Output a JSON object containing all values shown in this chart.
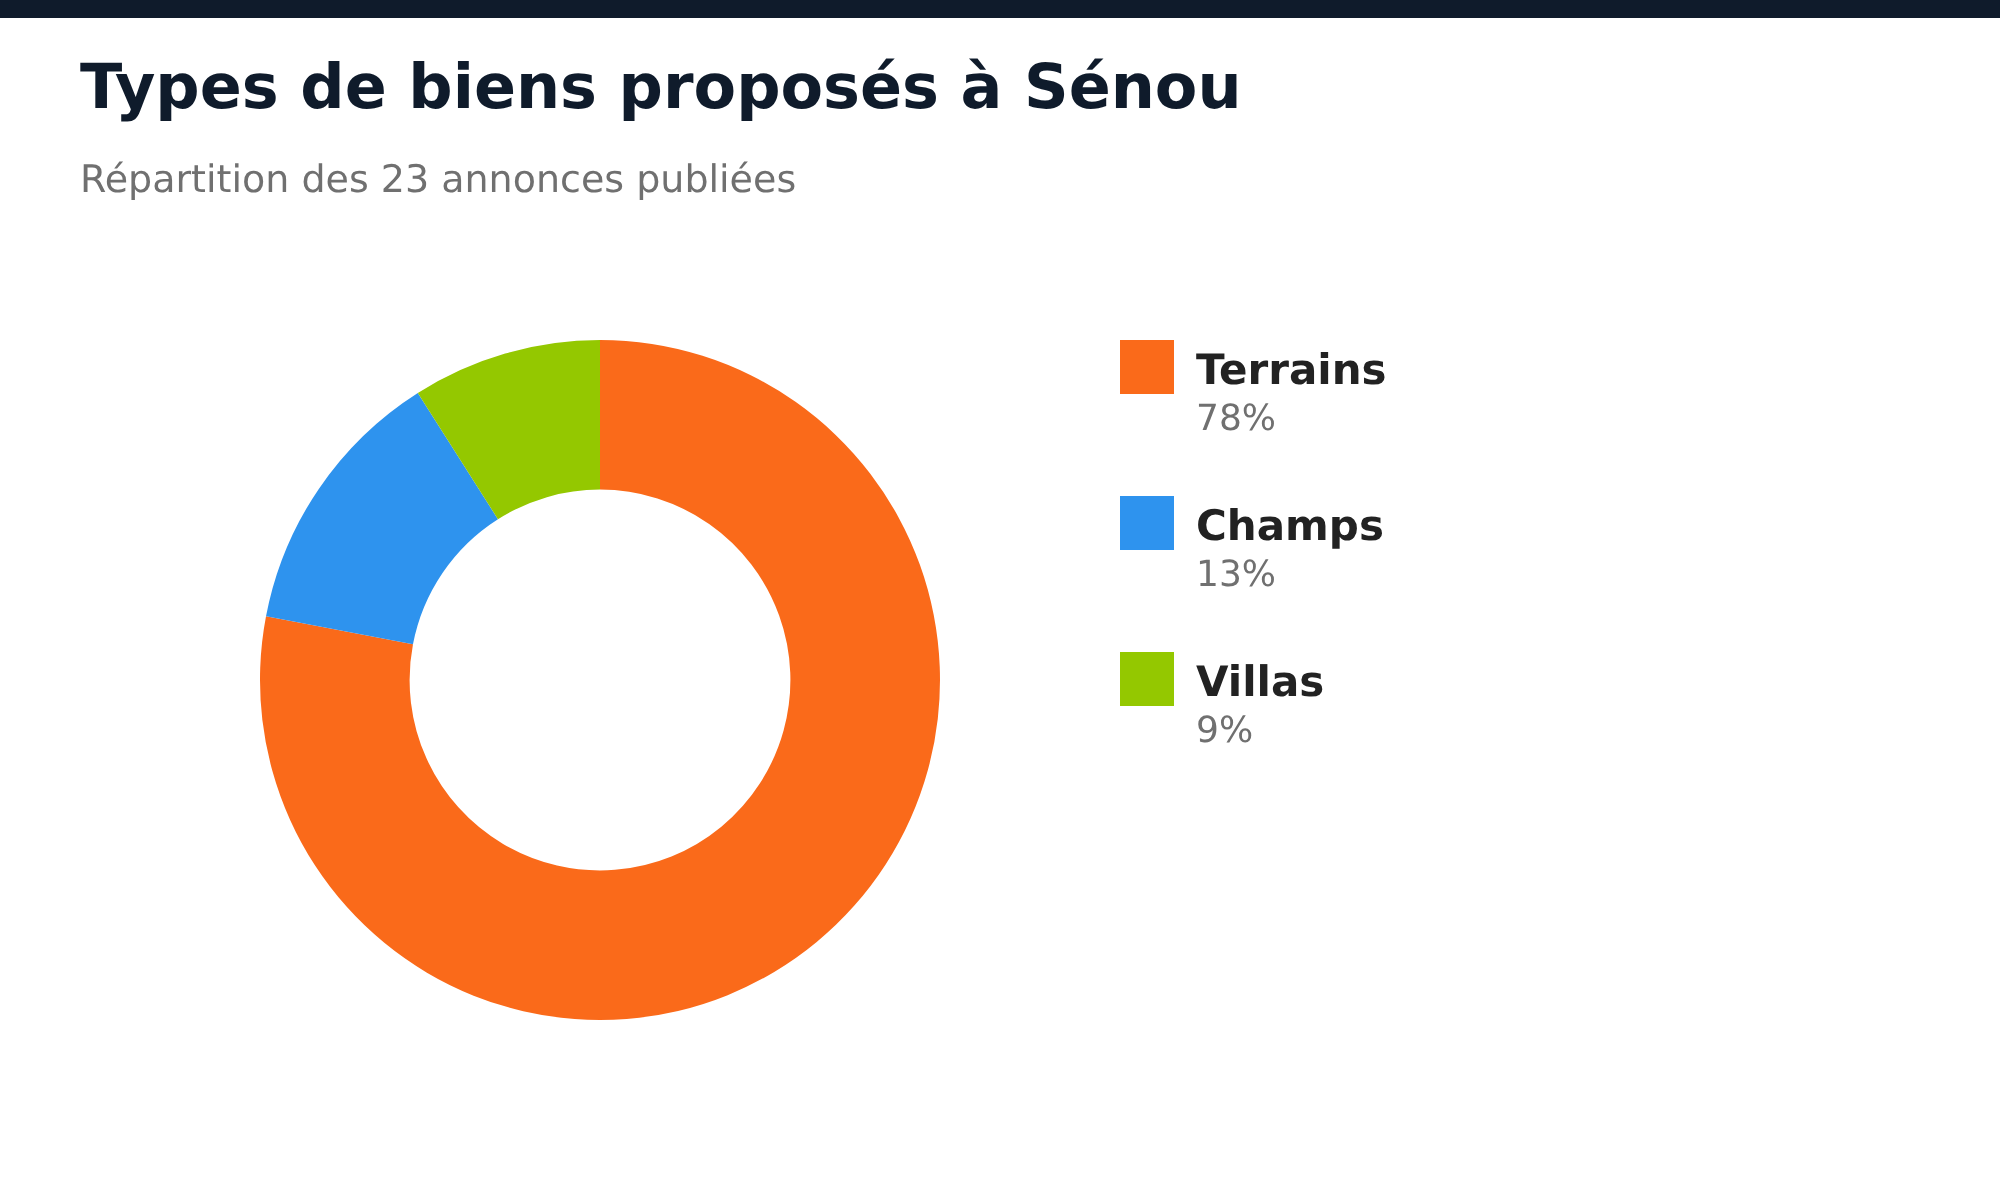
{
  "chart_data": {
    "type": "donut",
    "title": "Types de biens proposés à Sénou",
    "subtitle": "Répartition des 23 annonces publiées",
    "categories": [
      "Terrains",
      "Champs",
      "Villas"
    ],
    "values": [
      78,
      13,
      9
    ],
    "value_labels": [
      "78%",
      "13%",
      "9%"
    ],
    "colors": [
      "#fa6a1a",
      "#2e93ee",
      "#94c800"
    ],
    "legend": "right"
  }
}
